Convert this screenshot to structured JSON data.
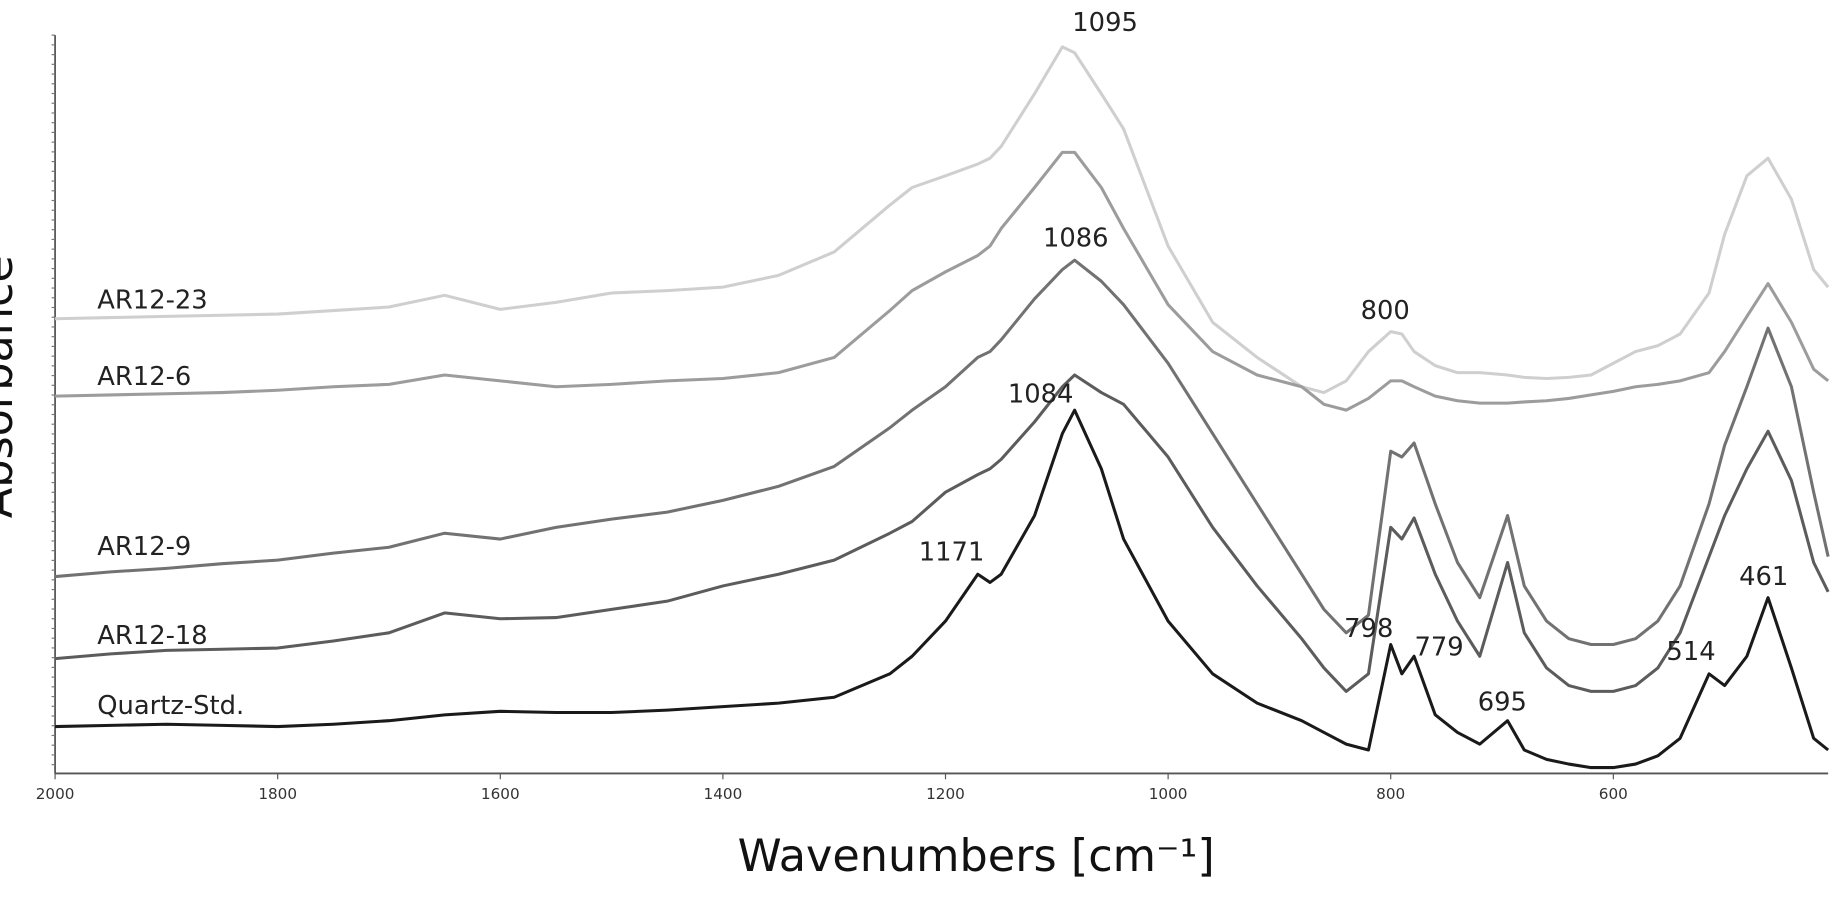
{
  "chart_data": {
    "type": "line",
    "x_label": "Wavenumbers [cm⁻¹]",
    "y_label": "Absorbance",
    "xlim": [
      2000,
      407
    ],
    "ylim": [
      0,
      630
    ],
    "xticks": [
      2000,
      1800,
      1600,
      1400,
      1200,
      1000,
      800,
      600
    ],
    "x": [
      2000,
      1950,
      1900,
      1850,
      1800,
      1750,
      1700,
      1650,
      1600,
      1550,
      1500,
      1450,
      1400,
      1350,
      1300,
      1250,
      1230,
      1200,
      1171,
      1160,
      1150,
      1120,
      1095,
      1084,
      1060,
      1040,
      1000,
      960,
      920,
      880,
      860,
      840,
      820,
      800,
      790,
      779,
      760,
      740,
      720,
      695,
      680,
      660,
      640,
      620,
      600,
      580,
      560,
      540,
      514,
      500,
      480,
      461,
      440,
      420,
      407
    ],
    "series": [
      {
        "name": "AR12-23",
        "color": "#cfcfcf",
        "values": [
          388,
          389,
          390,
          391,
          392,
          395,
          398,
          408,
          396,
          402,
          410,
          412,
          415,
          425,
          445,
          485,
          500,
          510,
          520,
          525,
          535,
          580,
          620,
          615,
          580,
          550,
          450,
          385,
          355,
          330,
          325,
          335,
          360,
          377,
          375,
          360,
          348,
          342,
          342,
          340,
          338,
          337,
          338,
          340,
          350,
          360,
          365,
          375,
          410,
          460,
          510,
          525,
          490,
          430,
          415
        ]
      },
      {
        "name": "AR12-6",
        "color": "#9c9c9c",
        "values": [
          322,
          323,
          324,
          325,
          327,
          330,
          332,
          340,
          335,
          330,
          332,
          335,
          337,
          342,
          355,
          395,
          412,
          428,
          442,
          450,
          465,
          500,
          530,
          530,
          500,
          465,
          400,
          360,
          340,
          330,
          315,
          310,
          320,
          335,
          335,
          330,
          322,
          318,
          316,
          316,
          317,
          318,
          320,
          323,
          326,
          330,
          332,
          335,
          342,
          360,
          390,
          418,
          385,
          345,
          335
        ]
      },
      {
        "name": "AR12-9",
        "color": "#727272",
        "values": [
          168,
          172,
          175,
          179,
          182,
          188,
          193,
          205,
          200,
          210,
          217,
          223,
          233,
          245,
          262,
          295,
          310,
          330,
          355,
          360,
          370,
          405,
          430,
          438,
          420,
          400,
          350,
          290,
          230,
          170,
          140,
          120,
          135,
          275,
          270,
          282,
          230,
          180,
          150,
          220,
          160,
          130,
          115,
          110,
          110,
          115,
          130,
          160,
          230,
          280,
          330,
          380,
          330,
          240,
          185
        ]
      },
      {
        "name": "AR12-18",
        "color": "#5c5c5c",
        "values": [
          98,
          102,
          105,
          106,
          107,
          113,
          120,
          137,
          132,
          133,
          140,
          147,
          160,
          170,
          182,
          205,
          215,
          240,
          255,
          260,
          268,
          300,
          330,
          340,
          325,
          315,
          270,
          210,
          160,
          115,
          90,
          70,
          85,
          210,
          200,
          218,
          170,
          130,
          100,
          180,
          120,
          90,
          75,
          70,
          70,
          75,
          90,
          120,
          185,
          220,
          260,
          292,
          250,
          180,
          155
        ]
      },
      {
        "name": "Quartz-Std.",
        "color": "#1a1a1a",
        "values": [
          40,
          41,
          42,
          41,
          40,
          42,
          45,
          50,
          53,
          52,
          52,
          54,
          57,
          60,
          65,
          85,
          100,
          130,
          170,
          163,
          170,
          220,
          290,
          310,
          260,
          200,
          130,
          85,
          60,
          45,
          35,
          25,
          20,
          110,
          85,
          100,
          50,
          35,
          25,
          45,
          20,
          12,
          8,
          5,
          5,
          8,
          15,
          30,
          85,
          75,
          100,
          150,
          90,
          30,
          20
        ]
      }
    ],
    "annotations": [
      "1095",
      "800",
      "1086",
      "1084",
      "1171",
      "798",
      "779",
      "695",
      "514",
      "461"
    ]
  }
}
